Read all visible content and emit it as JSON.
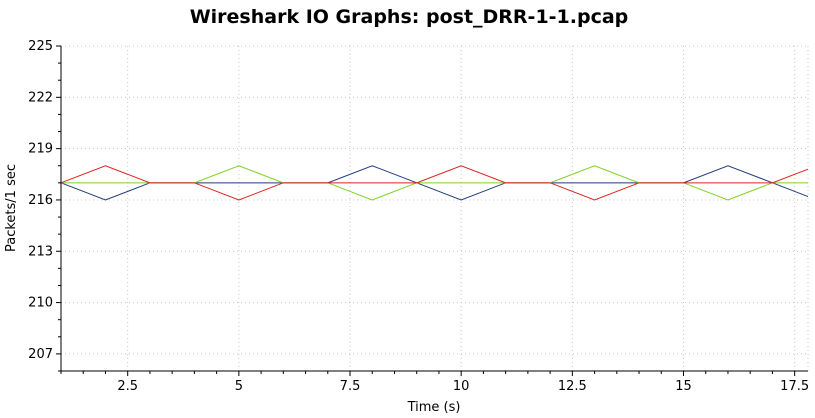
{
  "chart_data": {
    "type": "line",
    "title": "Wireshark IO Graphs: post_DRR-1-1.pcap",
    "xlabel": "Time (s)",
    "ylabel": "Packets/1 sec",
    "xlim": [
      1,
      17.8
    ],
    "ylim": [
      206,
      225
    ],
    "xticks": [
      2.5,
      5,
      7.5,
      10,
      12.5,
      15,
      17.5
    ],
    "xtick_labels": [
      "2.5",
      "5",
      "7.5",
      "10",
      "12.5",
      "15",
      "17.5"
    ],
    "yticks": [
      207,
      210,
      213,
      216,
      219,
      222,
      225
    ],
    "ytick_labels": [
      "207",
      "210",
      "213",
      "216",
      "219",
      "222",
      "225"
    ],
    "grid": true,
    "series": [
      {
        "color": "#1f3d7a",
        "x": [
          1,
          2,
          3,
          4,
          5,
          6,
          7,
          8,
          9,
          10,
          11,
          12,
          13,
          14,
          15,
          16,
          17,
          17.8
        ],
        "y": [
          217,
          216,
          217,
          217,
          217,
          217,
          217,
          218,
          217,
          216,
          217,
          217,
          217,
          217,
          217,
          218,
          217,
          216.2
        ]
      },
      {
        "color": "#7ed321",
        "x": [
          1,
          2,
          3,
          4,
          5,
          6,
          7,
          8,
          9,
          10,
          11,
          12,
          13,
          14,
          15,
          16,
          17,
          17.8
        ],
        "y": [
          217,
          217,
          217,
          217,
          218,
          217,
          217,
          216,
          217,
          217,
          217,
          217,
          218,
          217,
          217,
          216,
          217,
          217
        ]
      },
      {
        "color": "#e02020",
        "x": [
          1,
          2,
          3,
          4,
          5,
          6,
          7,
          8,
          9,
          10,
          11,
          12,
          13,
          14,
          15,
          16,
          17,
          17.8
        ],
        "y": [
          217,
          218,
          217,
          217,
          216,
          217,
          217,
          217,
          217,
          218,
          217,
          217,
          216,
          217,
          217,
          217,
          217,
          217.8
        ]
      }
    ]
  }
}
